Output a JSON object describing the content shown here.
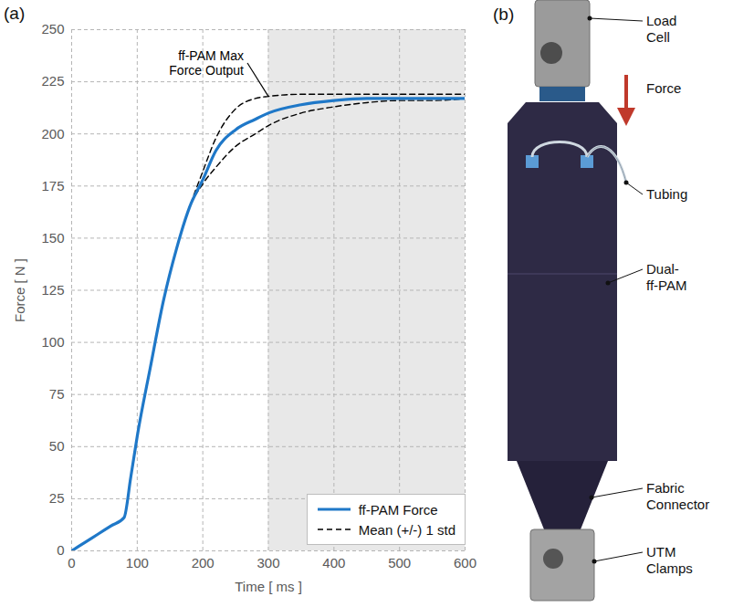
{
  "chart_data": {
    "type": "line",
    "panel": "(a)",
    "xlabel": "Time [ ms ]",
    "ylabel": "Force [ N ]",
    "xlim": [
      0,
      600
    ],
    "ylim": [
      0,
      250
    ],
    "xticks": [
      0,
      100,
      200,
      300,
      400,
      500,
      600
    ],
    "yticks": [
      0,
      25,
      50,
      75,
      100,
      125,
      150,
      175,
      200,
      225,
      250
    ],
    "grid": true,
    "legend": "lower right",
    "shaded_range": {
      "from": 300,
      "to": 600,
      "color": "#e8e8e8"
    },
    "x": [
      0,
      20,
      40,
      60,
      80,
      90,
      100,
      120,
      140,
      160,
      180,
      200,
      220,
      250,
      280,
      300,
      350,
      400,
      450,
      500,
      550,
      600
    ],
    "series": [
      {
        "name": "ff-PAM Force",
        "color": "#1f78c8",
        "line_style": "solid",
        "values": [
          0,
          4,
          8,
          12,
          16,
          35,
          55,
          88,
          120,
          145,
          165,
          178,
          192,
          202,
          207,
          210,
          214,
          216,
          217,
          217,
          217,
          217
        ]
      }
    ],
    "band": {
      "name": "Mean (+/-) 1 std",
      "color": "#000000",
      "line_style": "dashed",
      "upper": [
        0,
        4,
        8,
        12,
        16,
        35,
        55,
        88,
        120,
        145,
        165,
        182,
        198,
        212,
        217,
        218,
        219,
        219,
        219,
        219,
        219,
        219
      ],
      "lower": [
        0,
        4,
        8,
        12,
        16,
        35,
        55,
        88,
        120,
        145,
        165,
        176,
        184,
        194,
        200,
        204,
        210,
        213,
        215,
        216,
        216,
        217
      ]
    },
    "annotation": {
      "text": "ff-PAM Max Force Output",
      "x": 268,
      "y": 234,
      "arrow_to": [
        300,
        218
      ]
    }
  },
  "diagram": {
    "panel": "(b)",
    "labels": {
      "load_cell": "Load Cell",
      "force": "Force",
      "tubing": "Tubing",
      "ff_pam": "Dual-ff-PAM",
      "fabric_connector": "Fabric Connector",
      "utm_clamps": "UTM Clamps"
    }
  }
}
